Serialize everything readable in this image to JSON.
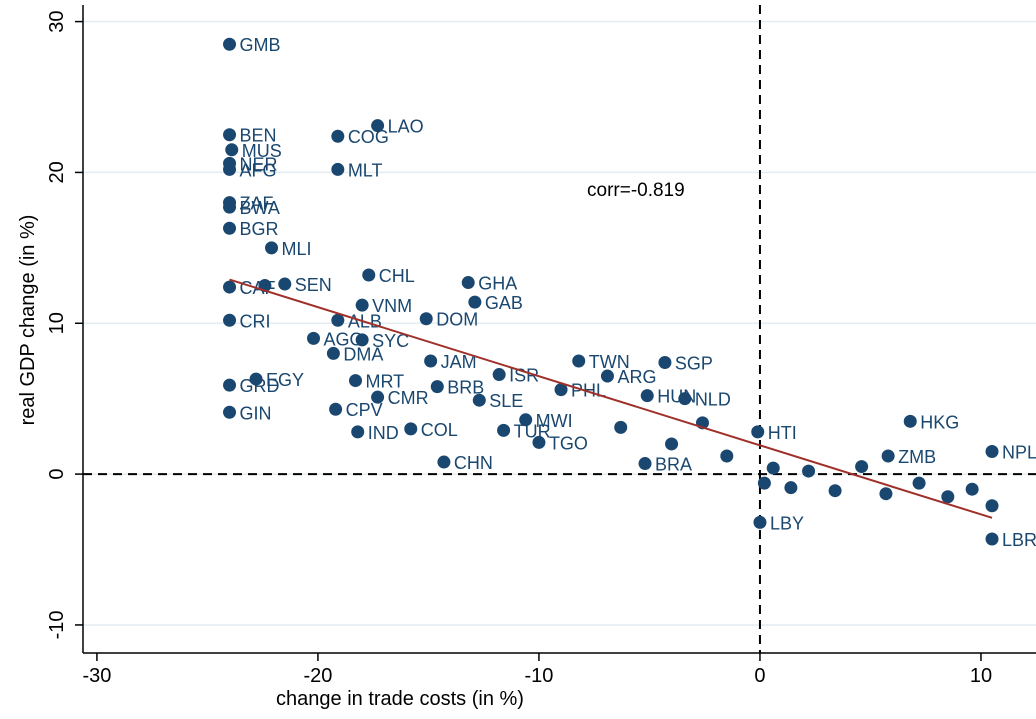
{
  "chart_data": {
    "type": "scatter",
    "x_label": "change in trade costs (in %)",
    "y_label": "real GDP change (in %)",
    "annotation": "corr=-0.819",
    "xlim": [
      -30.63,
      12.49
    ],
    "ylim": [
      -11.86,
      31.1
    ],
    "xticks": [
      -30,
      -20,
      -10,
      0,
      10
    ],
    "yticks": [
      -10,
      0,
      10,
      20,
      30
    ],
    "grid": true,
    "color": "#1a476f",
    "fit_color": "#a0302a",
    "reference_x": 0,
    "reference_y": 0,
    "fit": {
      "x": [
        -24.0,
        10.5
      ],
      "y": [
        12.9,
        -2.9
      ]
    },
    "labels": [
      "GMB",
      "BEN",
      "MUS",
      "NER",
      "AFG",
      "LAO",
      "COG",
      "MLT",
      "ZAF",
      "BWA",
      "BGR",
      "MLI",
      "CHL",
      "GHA",
      "CAF",
      "SEN",
      "GAB",
      "VNM",
      "ALB",
      "DOM",
      "CRI",
      "AGO",
      "SYC",
      "DMA",
      "JAM",
      "TWN",
      "SGP",
      "ISR",
      "ARG",
      "EGY",
      "MRT",
      "GRD",
      "BRB",
      "CMR",
      "SLE",
      "HUN",
      "NLD",
      "CPV",
      "GIN",
      "MWI",
      "HKG",
      "IND",
      "COL",
      "TUR",
      "HTI",
      "TGO",
      "CHN",
      "BRA",
      "NPL",
      "ZMB",
      "LBY",
      "LBR",
      "PHL",
      null,
      null,
      null,
      null,
      null,
      null,
      null,
      null,
      null,
      null,
      null,
      null,
      null,
      null,
      null,
      null
    ],
    "x": [
      -24.0,
      -24.0,
      -23.9,
      -24.0,
      -24.0,
      -17.3,
      -19.1,
      -19.1,
      -24.0,
      -24.0,
      -24.0,
      -22.1,
      -17.7,
      -13.2,
      -24.0,
      -21.5,
      -12.9,
      -18.0,
      -19.1,
      -15.1,
      -24.0,
      -20.2,
      -18.0,
      -19.3,
      -14.9,
      -8.2,
      -4.3,
      -11.8,
      -6.9,
      -22.8,
      -18.3,
      -24.0,
      -14.6,
      -17.3,
      -12.7,
      -5.1,
      -3.4,
      -19.2,
      -24.0,
      -10.6,
      6.8,
      -18.2,
      -15.8,
      -11.6,
      -0.1,
      -10.0,
      -14.3,
      -5.2,
      10.5,
      5.8,
      0.0,
      10.5,
      -9.0,
      -22.4,
      -6.3,
      -4.0,
      -2.6,
      -1.5,
      0.2,
      0.6,
      1.4,
      2.2,
      3.4,
      4.6,
      5.7,
      7.2,
      8.5,
      9.6,
      10.5
    ],
    "y": [
      28.5,
      22.5,
      21.5,
      20.6,
      20.2,
      23.1,
      22.4,
      20.2,
      18.0,
      17.7,
      16.3,
      15.0,
      13.2,
      12.7,
      12.4,
      12.6,
      11.4,
      11.2,
      10.2,
      10.3,
      10.2,
      9.0,
      8.9,
      8.0,
      7.5,
      7.5,
      7.4,
      6.6,
      6.5,
      6.3,
      6.2,
      5.9,
      5.8,
      5.1,
      4.9,
      5.2,
      5.0,
      4.3,
      4.1,
      3.6,
      3.5,
      2.8,
      3.0,
      2.9,
      2.8,
      2.1,
      0.8,
      0.7,
      1.5,
      1.2,
      -3.2,
      -4.3,
      5.6,
      12.5,
      3.1,
      2.0,
      3.4,
      1.2,
      -0.6,
      0.4,
      -0.9,
      0.2,
      -1.1,
      0.5,
      -1.3,
      -0.6,
      -1.5,
      -1.0,
      -2.1
    ]
  }
}
